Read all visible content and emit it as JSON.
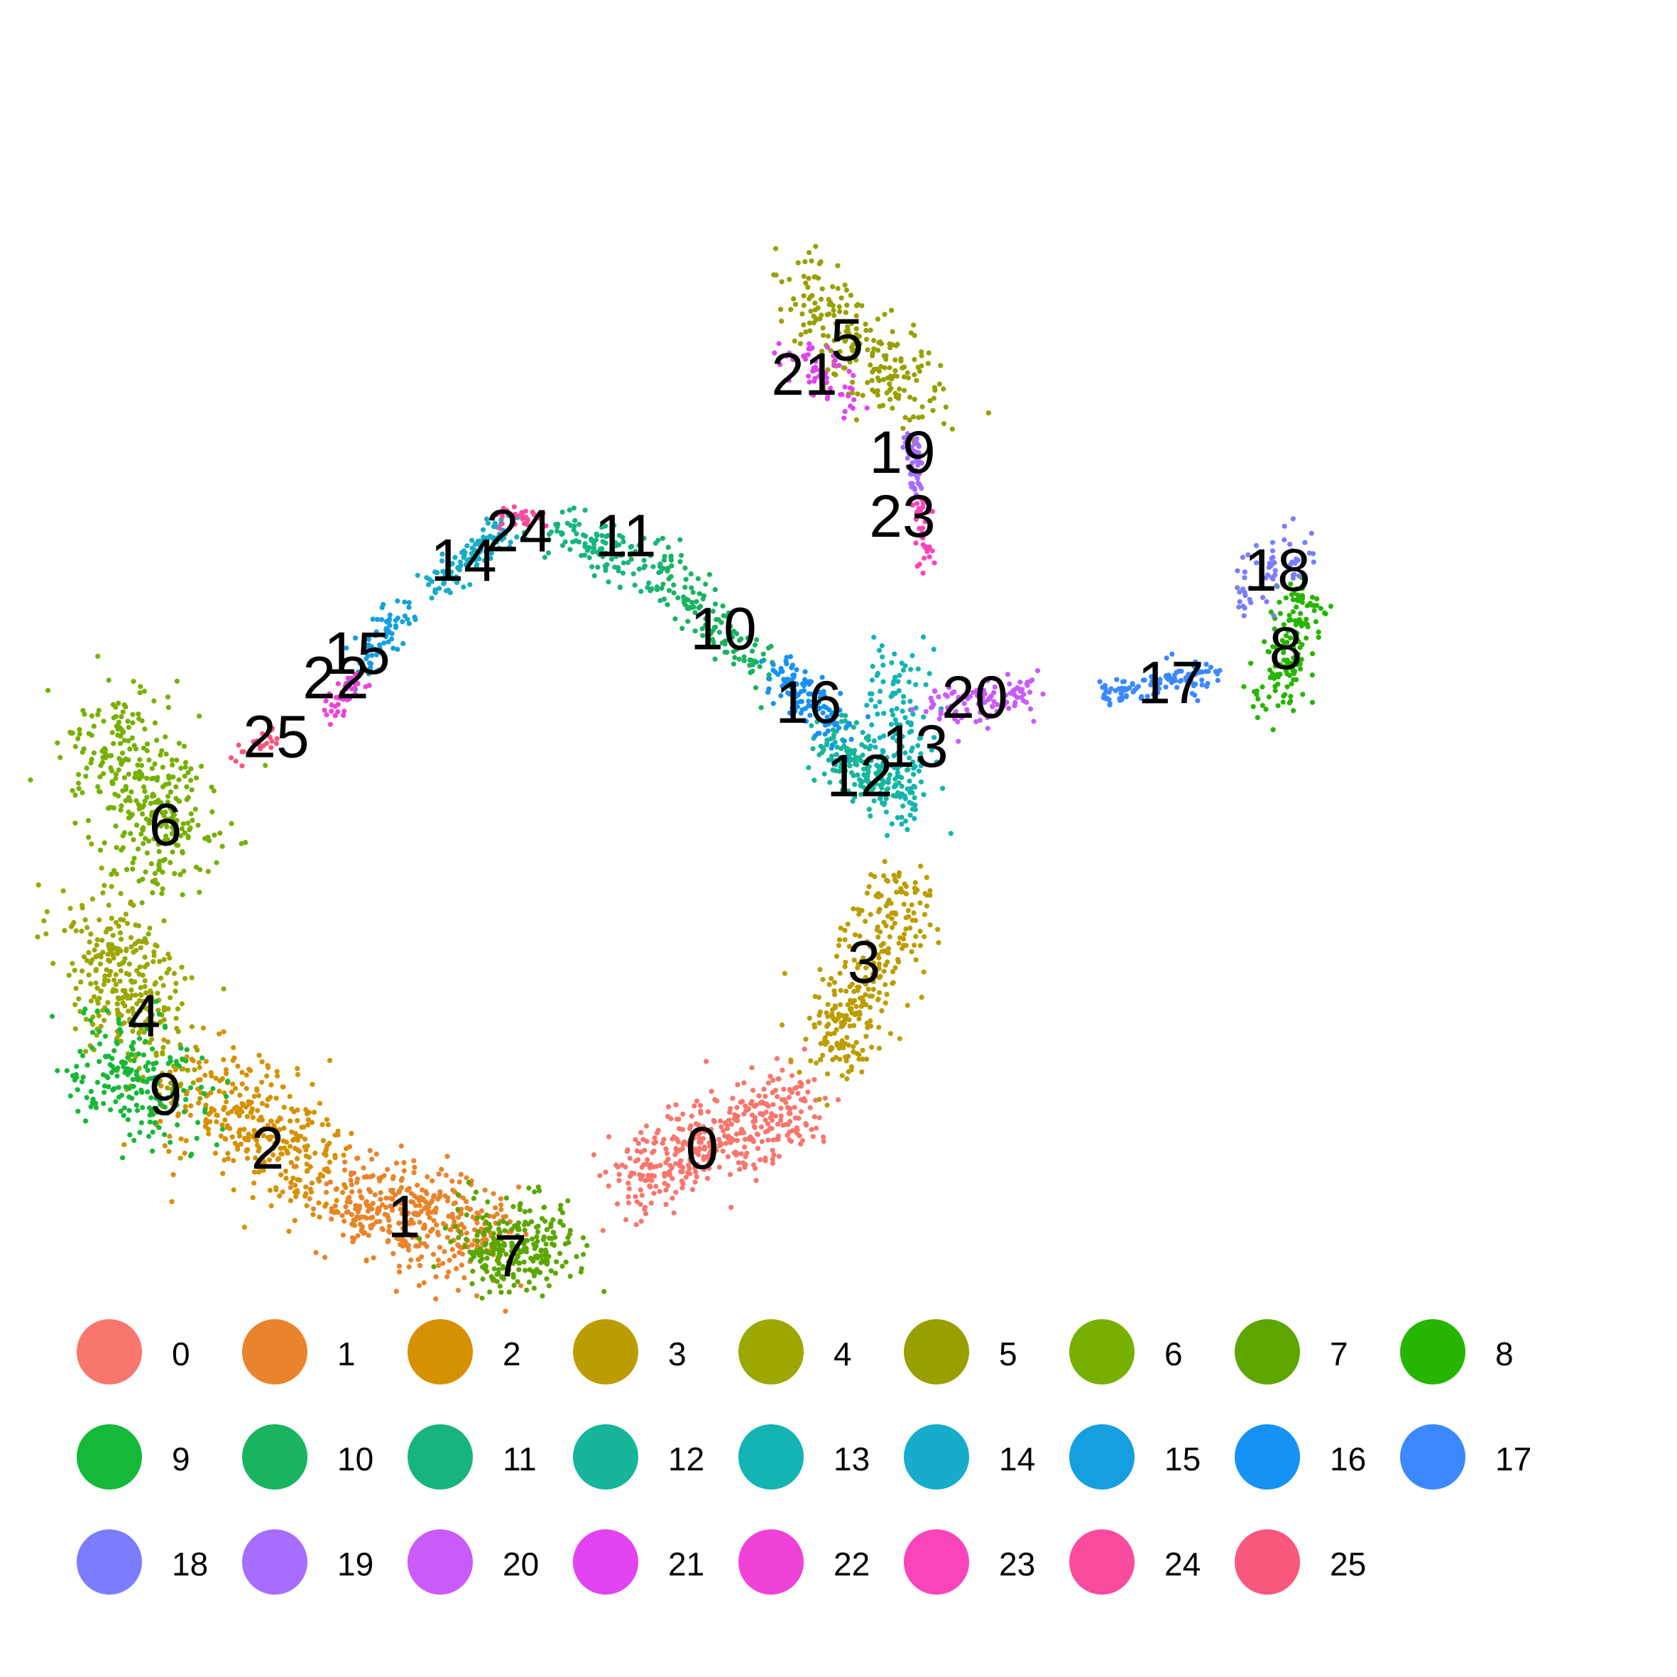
{
  "chart_data": {
    "type": "scatter",
    "title": "",
    "xlabel": "",
    "ylabel": "",
    "grid": false,
    "axes_visible": false,
    "legend_position": "bottom",
    "clusters": [
      {
        "name": "0",
        "color": "#F8766D",
        "center": [
          -0.45,
          -0.95
        ],
        "spread": 0.22,
        "n": 420
      },
      {
        "name": "1",
        "color": "#E9842C",
        "center": [
          -3.7,
          -1.65
        ],
        "spread": 0.28,
        "n": 400
      },
      {
        "name": "2",
        "color": "#D69100",
        "center": [
          -5.6,
          -0.8
        ],
        "spread": 0.3,
        "n": 340
      },
      {
        "name": "3",
        "color": "#BC9D00",
        "center": [
          1.6,
          0.9
        ],
        "spread": 0.22,
        "n": 300
      },
      {
        "name": "4",
        "color": "#9CA700",
        "center": [
          -7.1,
          0.6
        ],
        "spread": 0.3,
        "n": 320
      },
      {
        "name": "5",
        "color": "#98A000",
        "center": [
          1.45,
          7.25
        ],
        "spread": 0.25,
        "n": 230
      },
      {
        "name": "6",
        "color": "#77B000",
        "center": [
          -6.9,
          2.65
        ],
        "spread": 0.35,
        "n": 340
      },
      {
        "name": "7",
        "color": "#5DA600",
        "center": [
          -2.6,
          -2.05
        ],
        "spread": 0.22,
        "n": 260
      },
      {
        "name": "8",
        "color": "#26B500",
        "center": [
          6.65,
          4.1
        ],
        "spread": 0.14,
        "n": 150
      },
      {
        "name": "9",
        "color": "#16B83A",
        "center": [
          -7.1,
          -0.35
        ],
        "spread": 0.28,
        "n": 200
      },
      {
        "name": "10",
        "color": "#19B362",
        "center": [
          0.0,
          4.3
        ],
        "spread": 0.15,
        "n": 130
      },
      {
        "name": "11",
        "color": "#18B47F",
        "center": [
          -1.5,
          5.05
        ],
        "spread": 0.14,
        "n": 120
      },
      {
        "name": "12",
        "color": "#17B69B",
        "center": [
          1.55,
          2.95
        ],
        "spread": 0.16,
        "n": 160
      },
      {
        "name": "13",
        "color": "#14B4B3",
        "center": [
          2.15,
          3.15
        ],
        "spread": 0.2,
        "n": 150
      },
      {
        "name": "14",
        "color": "#17ACCA",
        "center": [
          -2.95,
          5.3
        ],
        "spread": 0.1,
        "n": 110
      },
      {
        "name": "15",
        "color": "#169FE0",
        "center": [
          -4.15,
          4.15
        ],
        "spread": 0.1,
        "n": 80
      },
      {
        "name": "16",
        "color": "#1691F4",
        "center": [
          0.9,
          3.45
        ],
        "spread": 0.12,
        "n": 120
      },
      {
        "name": "17",
        "color": "#3C89FF",
        "center": [
          5.2,
          3.75
        ],
        "spread": 0.08,
        "n": 110
      },
      {
        "name": "18",
        "color": "#7C7CFF",
        "center": [
          6.5,
          4.95
        ],
        "spread": 0.12,
        "n": 60
      },
      {
        "name": "19",
        "color": "#A66DFF",
        "center": [
          2.2,
          6.0
        ],
        "spread": 0.06,
        "n": 60
      },
      {
        "name": "20",
        "color": "#C95BFB",
        "center": [
          2.85,
          3.6
        ],
        "spread": 0.12,
        "n": 110
      },
      {
        "name": "21",
        "color": "#E144F0",
        "center": [
          1.0,
          6.95
        ],
        "spread": 0.12,
        "n": 60
      },
      {
        "name": "22",
        "color": "#F042D8",
        "center": [
          -4.5,
          3.65
        ],
        "spread": 0.07,
        "n": 40
      },
      {
        "name": "23",
        "color": "#FA44BB",
        "center": [
          2.3,
          5.3
        ],
        "spread": 0.06,
        "n": 35
      },
      {
        "name": "24",
        "color": "#FA4C9E",
        "center": [
          -2.4,
          5.4
        ],
        "spread": 0.05,
        "n": 30
      },
      {
        "name": "25",
        "color": "#F8577E",
        "center": [
          -5.6,
          3.05
        ],
        "spread": 0.05,
        "n": 25
      }
    ],
    "label_positions": [
      {
        "name": "0",
        "xy": [
          -0.3,
          -1.0
        ]
      },
      {
        "name": "1",
        "xy": [
          -3.8,
          -1.7
        ]
      },
      {
        "name": "2",
        "xy": [
          -5.4,
          -1.0
        ]
      },
      {
        "name": "3",
        "xy": [
          1.6,
          0.9
        ]
      },
      {
        "name": "4",
        "xy": [
          -6.85,
          0.35
        ]
      },
      {
        "name": "5",
        "xy": [
          1.4,
          7.25
        ]
      },
      {
        "name": "6",
        "xy": [
          -6.6,
          2.3
        ]
      },
      {
        "name": "7",
        "xy": [
          -2.55,
          -2.1
        ]
      },
      {
        "name": "8",
        "xy": [
          6.55,
          4.1
        ]
      },
      {
        "name": "9",
        "xy": [
          -6.6,
          -0.45
        ]
      },
      {
        "name": "10",
        "xy": [
          -0.05,
          4.3
        ]
      },
      {
        "name": "11",
        "xy": [
          -1.2,
          5.25
        ]
      },
      {
        "name": "12",
        "xy": [
          1.55,
          2.8
        ]
      },
      {
        "name": "13",
        "xy": [
          2.2,
          3.1
        ]
      },
      {
        "name": "14",
        "xy": [
          -3.1,
          5.0
        ]
      },
      {
        "name": "15",
        "xy": [
          -4.35,
          4.05
        ]
      },
      {
        "name": "16",
        "xy": [
          0.95,
          3.55
        ]
      },
      {
        "name": "17",
        "xy": [
          5.2,
          3.75
        ]
      },
      {
        "name": "18",
        "xy": [
          6.45,
          4.9
        ]
      },
      {
        "name": "19",
        "xy": [
          2.05,
          6.1
        ]
      },
      {
        "name": "20",
        "xy": [
          2.9,
          3.6
        ]
      },
      {
        "name": "21",
        "xy": [
          0.9,
          6.9
        ]
      },
      {
        "name": "22",
        "xy": [
          -4.6,
          3.8
        ]
      },
      {
        "name": "23",
        "xy": [
          2.05,
          5.45
        ]
      },
      {
        "name": "24",
        "xy": [
          -2.45,
          5.3
        ]
      },
      {
        "name": "25",
        "xy": [
          -5.3,
          3.2
        ]
      }
    ]
  },
  "legend": {
    "items": [
      "0",
      "1",
      "2",
      "3",
      "4",
      "5",
      "6",
      "7",
      "8",
      "9",
      "10",
      "11",
      "12",
      "13",
      "14",
      "15",
      "16",
      "17",
      "18",
      "19",
      "20",
      "21",
      "22",
      "23",
      "24",
      "25"
    ]
  }
}
